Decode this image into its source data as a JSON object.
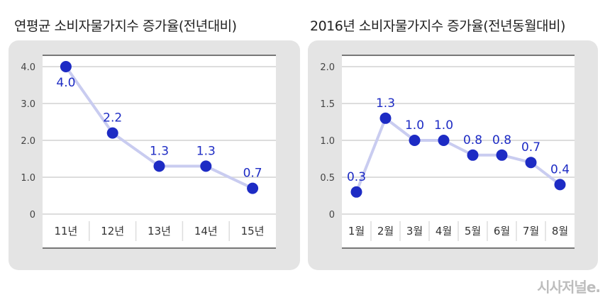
{
  "chart_data": [
    {
      "type": "line",
      "title": "연평균 소비자물가지수 증가율(전년대비)",
      "categories": [
        "11년",
        "12년",
        "13년",
        "14년",
        "15년"
      ],
      "values": [
        4.0,
        2.2,
        1.3,
        1.3,
        0.7
      ],
      "labels": [
        "4.0",
        "2.2",
        "1.3",
        "1.3",
        "0.7"
      ],
      "yticks": [
        "0",
        "1.0",
        "2.0",
        "3.0",
        "4.0"
      ],
      "ylim": [
        0,
        4
      ],
      "grid": true
    },
    {
      "type": "line",
      "title": "2016년 소비자물가지수 증가율(전년동월대비)",
      "categories": [
        "1월",
        "2월",
        "3월",
        "4월",
        "5월",
        "6월",
        "7월",
        "8월"
      ],
      "values": [
        0.3,
        1.3,
        1.0,
        1.0,
        0.8,
        0.8,
        0.7,
        0.4
      ],
      "labels": [
        "0.3",
        "1.3",
        "1.0",
        "1.0",
        "0.8",
        "0.8",
        "0.7",
        "0.4"
      ],
      "yticks": [
        "0",
        "0.5",
        "1.0",
        "1.5",
        "2.0"
      ],
      "ylim": [
        0,
        2
      ],
      "grid": true
    }
  ],
  "colors": {
    "point": "#1d2bc4",
    "line": "#c9ccf0",
    "panel": "#e4e4e4"
  },
  "logo": "시사저널e."
}
